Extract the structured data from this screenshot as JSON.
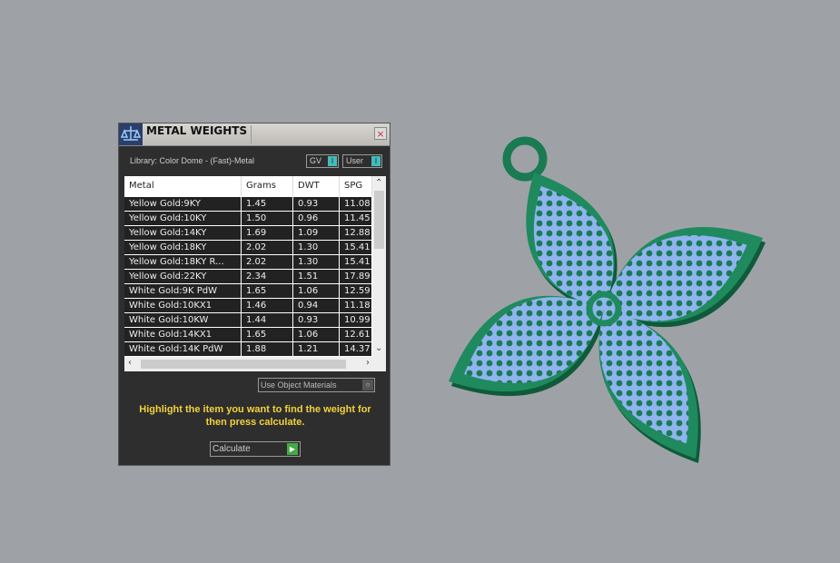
{
  "panel": {
    "title": "METAL WEIGHTS",
    "close_icon": "×",
    "library": "Library: Color Dome - (Fast)-Metal",
    "toggle_gv": "GV",
    "toggle_user": "User",
    "columns": [
      "Metal",
      "Grams",
      "DWT",
      "SPG"
    ],
    "rows": [
      [
        "Yellow Gold:9KY",
        "1.45",
        "0.93",
        "11.08"
      ],
      [
        "Yellow Gold:10KY",
        "1.50",
        "0.96",
        "11.45"
      ],
      [
        "Yellow Gold:14KY",
        "1.69",
        "1.09",
        "12.88"
      ],
      [
        "Yellow Gold:18KY",
        "2.02",
        "1.30",
        "15.41"
      ],
      [
        "Yellow Gold:18KY R...",
        "2.02",
        "1.30",
        "15.41"
      ],
      [
        "Yellow Gold:22KY",
        "2.34",
        "1.51",
        "17.89"
      ],
      [
        "White Gold:9K PdW",
        "1.65",
        "1.06",
        "12.59"
      ],
      [
        "White Gold:10KX1",
        "1.46",
        "0.94",
        "11.18"
      ],
      [
        "White Gold:10KW",
        "1.44",
        "0.93",
        "10.99"
      ],
      [
        "White Gold:14KX1",
        "1.65",
        "1.06",
        "12.61"
      ],
      [
        "White Gold:14K PdW",
        "1.88",
        "1.21",
        "14.37"
      ]
    ],
    "use_object_materials": "Use Object Materials",
    "hint": "Highlight the item you want to find the weight for then press calculate.",
    "calculate": "Calculate"
  },
  "colors": {
    "metal": "#1f8a5e",
    "stones": "#8fb4ee",
    "hint": "#f2d23c",
    "background": "#9ea2a7"
  }
}
